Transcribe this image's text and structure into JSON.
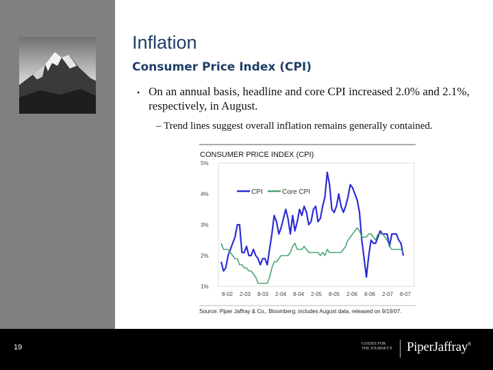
{
  "slide": {
    "title": "Inflation",
    "subtitle": "Consumer Price Index (CPI)",
    "bullet_marker": "•",
    "bullet": "On an annual basis, headline and core CPI increased 2.0% and 2.1%, respectively, in August.",
    "sub_bullet": "– Trend lines suggest overall inflation remains generally contained.",
    "page_number": "19"
  },
  "footer": {
    "tagline_line1": "Guides for",
    "tagline_line2": "the Journey®",
    "brand": "PiperJaffray",
    "brand_mark": "®"
  },
  "colors": {
    "title": "#1f3d66",
    "cpi": "#2b2bd6",
    "core_cpi": "#4aa36e",
    "sidebar": "#808080",
    "footer": "#000000"
  },
  "chart_data": {
    "type": "line",
    "title": "CONSUMER PRICE INDEX (CPI)",
    "x_ticks": [
      "8-02",
      "2-03",
      "8-03",
      "2-04",
      "8-04",
      "2-05",
      "8-05",
      "2-06",
      "8-06",
      "2-07",
      "8-07"
    ],
    "y_ticks": [
      "5%",
      "4%",
      "3%",
      "2%",
      "1%"
    ],
    "ylim": [
      1,
      5
    ],
    "grid": false,
    "legend_position": "top-left",
    "source": "Source: Piper Jaffray & Co., Bloomberg; includes August data, released on 9/19/07.",
    "series": [
      {
        "name": "CPI",
        "color": "#2b2bd6",
        "values": [
          1.8,
          1.5,
          1.6,
          2.0,
          2.2,
          2.4,
          2.6,
          3.0,
          3.0,
          2.1,
          2.1,
          2.3,
          2.0,
          2.0,
          2.2,
          2.0,
          1.9,
          1.7,
          1.9,
          1.9,
          1.7,
          2.2,
          2.7,
          3.3,
          3.1,
          2.7,
          2.9,
          3.2,
          3.5,
          3.2,
          2.7,
          3.3,
          2.8,
          3.1,
          3.5,
          3.3,
          3.6,
          3.4,
          3.0,
          3.1,
          3.5,
          3.6,
          3.1,
          3.2,
          3.6,
          3.9,
          4.7,
          4.3,
          3.5,
          3.4,
          3.6,
          4.0,
          3.6,
          3.4,
          3.6,
          3.9,
          4.3,
          4.2,
          4.0,
          3.8,
          3.4,
          2.5,
          1.9,
          1.3,
          2.0,
          2.5,
          2.4,
          2.4,
          2.6,
          2.8,
          2.7,
          2.7,
          2.7,
          2.3,
          2.7,
          2.7,
          2.7,
          2.5,
          2.4,
          2.0
        ]
      },
      {
        "name": "Core CPI",
        "color": "#4aa36e",
        "values": [
          2.4,
          2.2,
          2.2,
          2.2,
          2.1,
          2.0,
          1.9,
          1.9,
          1.7,
          1.7,
          1.6,
          1.6,
          1.5,
          1.5,
          1.4,
          1.3,
          1.1,
          1.1,
          1.1,
          1.1,
          1.1,
          1.3,
          1.6,
          1.8,
          1.8,
          1.9,
          2.0,
          2.0,
          2.0,
          2.0,
          2.1,
          2.3,
          2.4,
          2.2,
          2.2,
          2.2,
          2.3,
          2.2,
          2.1,
          2.1,
          2.1,
          2.1,
          2.1,
          2.0,
          2.1,
          2.0,
          2.2,
          2.1,
          2.1,
          2.1,
          2.1,
          2.1,
          2.1,
          2.2,
          2.3,
          2.5,
          2.6,
          2.7,
          2.8,
          2.9,
          2.8,
          2.6,
          2.6,
          2.6,
          2.7,
          2.7,
          2.6,
          2.5,
          2.7,
          2.7,
          2.7,
          2.6,
          2.5,
          2.3,
          2.2,
          2.2,
          2.2,
          2.2,
          2.2,
          2.1
        ]
      }
    ]
  }
}
